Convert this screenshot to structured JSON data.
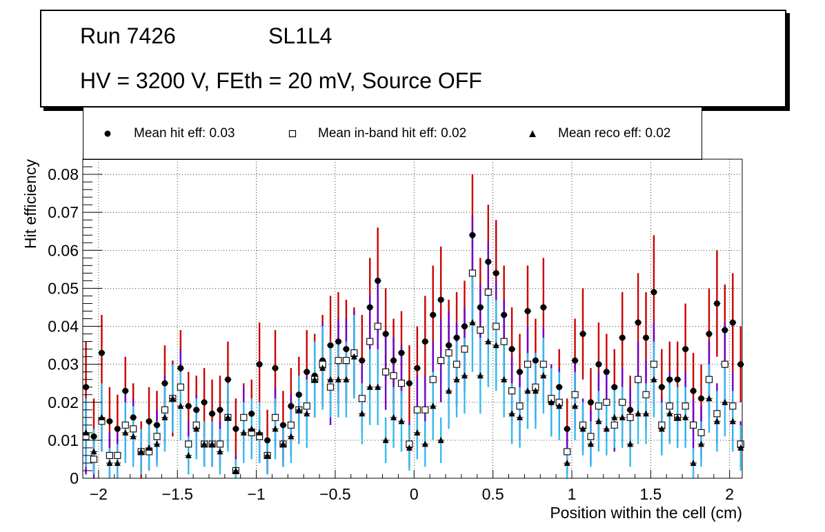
{
  "chart_data": {
    "type": "scatter",
    "title_lines": {
      "run": "Run 7426",
      "layer": "SL1L4",
      "conditions": "HV = 3200 V, FEth = 20 mV, Source OFF"
    },
    "xlabel": "Position within the cell (cm)",
    "ylabel": "Hit efficiency",
    "xlim": [
      -2.1,
      2.08
    ],
    "ylim": [
      0,
      0.084
    ],
    "xticks": [
      -2,
      -1.5,
      -1,
      -0.5,
      0,
      0.5,
      1,
      1.5,
      2
    ],
    "xtick_labels": [
      "−2",
      "−1.5",
      "−1",
      "−0.5",
      "0",
      "0.5",
      "1",
      "1.5",
      "2"
    ],
    "yticks": [
      0,
      0.01,
      0.02,
      0.03,
      0.04,
      0.05,
      0.06,
      0.07,
      0.08
    ],
    "ytick_labels": [
      "0",
      "0.01",
      "0.02",
      "0.03",
      "0.04",
      "0.05",
      "0.06",
      "0.07",
      "0.08"
    ],
    "grid": true,
    "legend_position": "top",
    "x": [
      -2.08,
      -2.03,
      -1.98,
      -1.93,
      -1.88,
      -1.83,
      -1.78,
      -1.73,
      -1.68,
      -1.63,
      -1.58,
      -1.53,
      -1.48,
      -1.43,
      -1.38,
      -1.33,
      -1.28,
      -1.23,
      -1.18,
      -1.13,
      -1.08,
      -1.03,
      -0.98,
      -0.93,
      -0.88,
      -0.83,
      -0.78,
      -0.73,
      -0.68,
      -0.63,
      -0.58,
      -0.53,
      -0.48,
      -0.43,
      -0.38,
      -0.33,
      -0.28,
      -0.23,
      -0.18,
      -0.13,
      -0.08,
      -0.03,
      0.02,
      0.07,
      0.12,
      0.17,
      0.22,
      0.27,
      0.32,
      0.37,
      0.42,
      0.47,
      0.52,
      0.57,
      0.62,
      0.67,
      0.72,
      0.77,
      0.82,
      0.87,
      0.92,
      0.97,
      1.02,
      1.07,
      1.12,
      1.17,
      1.22,
      1.27,
      1.32,
      1.37,
      1.42,
      1.47,
      1.52,
      1.57,
      1.62,
      1.67,
      1.72,
      1.77,
      1.82,
      1.87,
      1.92,
      1.97,
      2.02,
      2.07
    ],
    "series": [
      {
        "name": "Mean hit  eff: 0.03",
        "marker": "circle",
        "color": "#000000",
        "error_color": "#cc0000",
        "values": [
          0.024,
          0.011,
          0.033,
          0.015,
          0.013,
          0.023,
          0.016,
          0.007,
          0.015,
          0.014,
          0.025,
          0.021,
          0.029,
          0.019,
          0.018,
          0.02,
          0.017,
          0.018,
          0.026,
          0.013,
          0.016,
          0.017,
          0.03,
          0.01,
          0.029,
          0.014,
          0.019,
          0.022,
          0.028,
          0.027,
          0.031,
          0.035,
          0.036,
          0.034,
          0.033,
          0.031,
          0.045,
          0.052,
          0.038,
          0.031,
          0.033,
          0.025,
          0.029,
          0.036,
          0.043,
          0.047,
          0.035,
          0.037,
          0.04,
          0.064,
          0.045,
          0.057,
          0.054,
          0.043,
          0.034,
          0.028,
          0.044,
          0.031,
          0.045,
          0.02,
          0.024,
          0.013,
          0.031,
          0.038,
          0.02,
          0.03,
          0.028,
          0.024,
          0.037,
          0.018,
          0.041,
          0.037,
          0.049,
          0.024,
          0.026,
          0.026,
          0.034,
          0.023,
          0.021,
          0.038,
          0.046,
          0.039,
          0.041,
          0.03
        ],
        "errors": [
          0.012,
          0.01,
          0.01,
          0.009,
          0.009,
          0.009,
          0.009,
          0.008,
          0.009,
          0.009,
          0.01,
          0.01,
          0.01,
          0.009,
          0.009,
          0.009,
          0.009,
          0.009,
          0.01,
          0.008,
          0.009,
          0.009,
          0.011,
          0.008,
          0.01,
          0.009,
          0.01,
          0.01,
          0.011,
          0.011,
          0.012,
          0.013,
          0.013,
          0.013,
          0.012,
          0.012,
          0.013,
          0.014,
          0.012,
          0.011,
          0.011,
          0.01,
          0.011,
          0.012,
          0.013,
          0.014,
          0.012,
          0.012,
          0.012,
          0.016,
          0.013,
          0.015,
          0.014,
          0.013,
          0.011,
          0.01,
          0.012,
          0.011,
          0.013,
          0.009,
          0.01,
          0.008,
          0.011,
          0.012,
          0.009,
          0.011,
          0.01,
          0.01,
          0.012,
          0.009,
          0.013,
          0.012,
          0.015,
          0.01,
          0.01,
          0.01,
          0.012,
          0.01,
          0.009,
          0.012,
          0.014,
          0.012,
          0.013,
          0.01
        ]
      },
      {
        "name": "Mean in-band hit eff: 0.02",
        "marker": "open-square",
        "color": "#000000",
        "error_color": "#6a00cc",
        "values": [
          0.011,
          0.005,
          0.015,
          0.006,
          0.006,
          0.014,
          0.013,
          0.007,
          0.007,
          0.011,
          0.018,
          0.021,
          0.024,
          0.009,
          0.014,
          0.009,
          0.009,
          0.009,
          0.016,
          0.002,
          0.016,
          0.012,
          0.011,
          0.006,
          0.016,
          0.009,
          0.014,
          0.018,
          0.019,
          0.026,
          0.03,
          0.024,
          0.031,
          0.031,
          0.033,
          0.021,
          0.036,
          0.04,
          0.028,
          0.027,
          0.025,
          0.009,
          0.018,
          0.018,
          0.026,
          0.031,
          0.033,
          0.03,
          0.034,
          0.054,
          0.039,
          0.049,
          0.04,
          0.036,
          0.023,
          0.019,
          0.03,
          0.024,
          0.03,
          0.021,
          0.02,
          0.007,
          0.022,
          0.014,
          0.011,
          0.019,
          0.02,
          0.014,
          0.02,
          0.016,
          0.026,
          0.022,
          0.03,
          0.014,
          0.019,
          0.016,
          0.019,
          0.014,
          0.012,
          0.026,
          0.017,
          0.03,
          0.019,
          0.009
        ],
        "errors": [
          0.01,
          0.006,
          0.008,
          0.006,
          0.006,
          0.008,
          0.008,
          0.005,
          0.005,
          0.007,
          0.009,
          0.009,
          0.01,
          0.006,
          0.008,
          0.006,
          0.006,
          0.006,
          0.008,
          0.004,
          0.008,
          0.007,
          0.007,
          0.005,
          0.008,
          0.006,
          0.008,
          0.009,
          0.009,
          0.01,
          0.011,
          0.01,
          0.011,
          0.011,
          0.011,
          0.009,
          0.012,
          0.013,
          0.01,
          0.01,
          0.01,
          0.006,
          0.009,
          0.009,
          0.01,
          0.011,
          0.011,
          0.011,
          0.011,
          0.015,
          0.012,
          0.013,
          0.012,
          0.011,
          0.009,
          0.009,
          0.01,
          0.009,
          0.01,
          0.009,
          0.009,
          0.006,
          0.009,
          0.007,
          0.007,
          0.009,
          0.009,
          0.007,
          0.009,
          0.008,
          0.01,
          0.009,
          0.011,
          0.007,
          0.009,
          0.008,
          0.009,
          0.007,
          0.007,
          0.01,
          0.008,
          0.011,
          0.009,
          0.006
        ]
      },
      {
        "name": "Mean reco eff: 0.02",
        "marker": "triangle",
        "color": "#000000",
        "error_color": "#33bbee",
        "values": [
          0.012,
          0.007,
          0.016,
          0.004,
          0.004,
          0.012,
          0.011,
          0.007,
          0.008,
          0.009,
          0.016,
          0.021,
          0.019,
          0.006,
          0.013,
          0.009,
          0.009,
          0.007,
          0.016,
          0.002,
          0.012,
          0.013,
          0.012,
          0.006,
          0.013,
          0.009,
          0.011,
          0.018,
          0.017,
          0.026,
          0.029,
          0.026,
          0.026,
          0.026,
          0.032,
          0.017,
          0.024,
          0.024,
          0.01,
          0.016,
          0.015,
          0.008,
          0.012,
          0.009,
          0.019,
          0.01,
          0.023,
          0.026,
          0.027,
          0.041,
          0.027,
          0.036,
          0.035,
          0.026,
          0.017,
          0.016,
          0.023,
          0.023,
          0.027,
          0.02,
          0.019,
          0.004,
          0.019,
          0.013,
          0.009,
          0.015,
          0.013,
          0.016,
          0.016,
          0.009,
          0.017,
          0.017,
          0.026,
          0.013,
          0.017,
          0.016,
          0.016,
          0.004,
          0.009,
          0.021,
          0.015,
          0.02,
          0.015,
          0.008
        ],
        "errors": [
          0.009,
          0.006,
          0.009,
          0.004,
          0.005,
          0.008,
          0.008,
          0.006,
          0.006,
          0.006,
          0.009,
          0.009,
          0.009,
          0.005,
          0.008,
          0.006,
          0.006,
          0.006,
          0.009,
          0.003,
          0.008,
          0.008,
          0.008,
          0.005,
          0.008,
          0.006,
          0.007,
          0.009,
          0.009,
          0.01,
          0.011,
          0.01,
          0.01,
          0.01,
          0.011,
          0.008,
          0.01,
          0.01,
          0.006,
          0.008,
          0.008,
          0.006,
          0.007,
          0.006,
          0.009,
          0.006,
          0.01,
          0.01,
          0.01,
          0.013,
          0.01,
          0.012,
          0.012,
          0.01,
          0.008,
          0.008,
          0.01,
          0.01,
          0.01,
          0.009,
          0.009,
          0.004,
          0.009,
          0.007,
          0.006,
          0.008,
          0.007,
          0.008,
          0.008,
          0.006,
          0.008,
          0.008,
          0.01,
          0.007,
          0.008,
          0.008,
          0.008,
          0.004,
          0.006,
          0.009,
          0.008,
          0.009,
          0.008,
          0.006
        ]
      }
    ]
  }
}
